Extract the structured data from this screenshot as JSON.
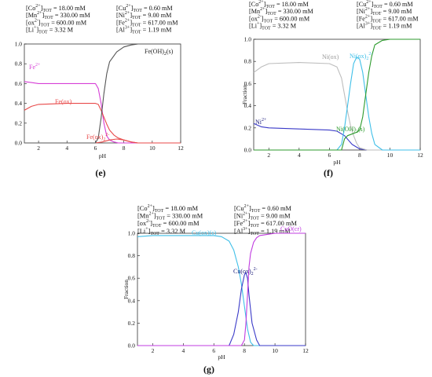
{
  "chart_data": [
    {
      "type": "line",
      "panel_label": "(e)",
      "conditions": {
        "left": [
          {
            "species": "Co",
            "charge": "2+",
            "sub": "TOT",
            "value": "18.00 mM"
          },
          {
            "species": "Mn",
            "charge": "2+",
            "sub": "TOT",
            "value": "330.00 mM"
          },
          {
            "species": "ox",
            "charge": "2-",
            "sub": "TOT",
            "value": "600.00 mM"
          },
          {
            "species": "Li",
            "charge": "+",
            "sub": "TOT",
            "value": "3.32 M"
          }
        ],
        "right": [
          {
            "species": "Cu",
            "charge": "2+",
            "sub": "TOT",
            "value": "0.60 mM"
          },
          {
            "species": "Ni",
            "charge": "2+",
            "sub": "TOT",
            "value": "9.00 mM"
          },
          {
            "species": "Fe",
            "charge": "2+",
            "sub": "TOT",
            "value": "617.00 mM"
          },
          {
            "species": "Al",
            "charge": "3+",
            "sub": "TOT",
            "value": "1.19 mM"
          }
        ]
      },
      "xlabel": "pH",
      "ylabel": "",
      "xlim": [
        1,
        12
      ],
      "ylim": [
        0,
        1
      ],
      "xticks": [
        2,
        4,
        6,
        8,
        10,
        12
      ],
      "yticks": [
        0.0,
        0.2,
        0.4,
        0.6,
        0.8,
        1.0
      ],
      "series": [
        {
          "name": "Fe2+",
          "color": "#d63ed6",
          "x": [
            1,
            1.5,
            2,
            4,
            6,
            6.2,
            6.4,
            6.6,
            6.8,
            7.0,
            7.3,
            7.6,
            8,
            9,
            12
          ],
          "y": [
            0.62,
            0.61,
            0.6,
            0.6,
            0.6,
            0.55,
            0.4,
            0.2,
            0.07,
            0.03,
            0.01,
            0.0,
            0.0,
            0.0,
            0.0
          ]
        },
        {
          "name": "Fe(ox)",
          "color": "#e84a4a",
          "x": [
            1,
            1.5,
            2,
            4,
            6,
            6.2,
            6.4,
            6.6,
            6.8,
            7.0,
            7.3,
            7.6,
            8,
            8.5,
            9,
            12
          ],
          "y": [
            0.33,
            0.37,
            0.39,
            0.4,
            0.4,
            0.39,
            0.33,
            0.26,
            0.19,
            0.13,
            0.08,
            0.05,
            0.03,
            0.01,
            0.0,
            0.0
          ]
        },
        {
          "name": "Fe(ox)2 2-",
          "color": "#e84a4a",
          "x": [
            1,
            4,
            6,
            6.5,
            7,
            7.5,
            8,
            8.5,
            9,
            12
          ],
          "y": [
            0.0,
            0.0,
            0.0,
            0.01,
            0.03,
            0.04,
            0.03,
            0.01,
            0.0,
            0.0
          ]
        },
        {
          "name": "Fe(OH)2(s)",
          "color": "#555555",
          "x": [
            1,
            6,
            6.2,
            6.4,
            6.6,
            6.8,
            7.0,
            7.5,
            8,
            8.5,
            9,
            10,
            12
          ],
          "y": [
            0.0,
            0.0,
            0.05,
            0.25,
            0.5,
            0.7,
            0.82,
            0.92,
            0.97,
            0.99,
            1.0,
            1.0,
            1.0
          ]
        }
      ],
      "series_labels": [
        {
          "text": "Fe",
          "sup": "2+",
          "color": "#d63ed6"
        },
        {
          "text": "Fe(ox)",
          "color": "#e84a4a"
        },
        {
          "text": "Fe(ox)",
          "sub": "2",
          "sup": "2-",
          "color": "#e84a4a"
        },
        {
          "text": "Fe(OH)",
          "sub": "2",
          "after": "(s)",
          "color": "#222222"
        }
      ]
    },
    {
      "type": "line",
      "panel_label": "(f)",
      "conditions": {
        "left": [
          {
            "species": "Co",
            "charge": "2+",
            "sub": "TOT",
            "value": "18.00 mM"
          },
          {
            "species": "Mn",
            "charge": "2+",
            "sub": "TOT",
            "value": "330.00 mM"
          },
          {
            "species": "ox",
            "charge": "2-",
            "sub": "TOT",
            "value": "600.00 mM"
          },
          {
            "species": "Li",
            "charge": "+",
            "sub": "TOT",
            "value": "3.32 M"
          }
        ],
        "right": [
          {
            "species": "Cu",
            "charge": "2+",
            "sub": "TOT",
            "value": "0.60 mM"
          },
          {
            "species": "Ni",
            "charge": "2+",
            "sub": "TOT",
            "value": "9.00 mM"
          },
          {
            "species": "Fe",
            "charge": "2+",
            "sub": "TOT",
            "value": "617.00 mM"
          },
          {
            "species": "Al",
            "charge": "3+",
            "sub": "TOT",
            "value": "1.19 mM"
          }
        ]
      },
      "xlabel": "pH",
      "ylabel": "Fraction",
      "xlim": [
        1,
        12
      ],
      "ylim": [
        0,
        1
      ],
      "xticks": [
        2,
        4,
        6,
        8,
        10,
        12
      ],
      "yticks": [
        0.0,
        0.2,
        0.4,
        0.6,
        0.8,
        1.0
      ],
      "series": [
        {
          "name": "Ni2+",
          "color": "#3a3ac8",
          "x": [
            1,
            1.5,
            2,
            4,
            6,
            6.5,
            7,
            7.5,
            8,
            8.5,
            12
          ],
          "y": [
            0.24,
            0.21,
            0.2,
            0.19,
            0.18,
            0.17,
            0.13,
            0.05,
            0.01,
            0.0,
            0.0
          ]
        },
        {
          "name": "Ni(ox)",
          "color": "#bdbdbd",
          "x": [
            1,
            1.5,
            2,
            4,
            6,
            6.5,
            6.8,
            7.0,
            7.2,
            7.4,
            7.6,
            7.8,
            8.0,
            8.5,
            12
          ],
          "y": [
            0.7,
            0.75,
            0.78,
            0.79,
            0.78,
            0.75,
            0.65,
            0.5,
            0.35,
            0.22,
            0.13,
            0.06,
            0.02,
            0.0,
            0.0
          ]
        },
        {
          "name": "Ni(ox)2 2-",
          "color": "#3fbfe8",
          "x": [
            1,
            6.5,
            6.8,
            7.0,
            7.2,
            7.4,
            7.6,
            7.8,
            8.0,
            8.2,
            8.4,
            8.6,
            8.8,
            9.0,
            9.5,
            12
          ],
          "y": [
            0.0,
            0.0,
            0.05,
            0.2,
            0.4,
            0.6,
            0.78,
            0.84,
            0.82,
            0.7,
            0.5,
            0.3,
            0.15,
            0.05,
            0.0,
            0.0
          ]
        },
        {
          "name": "Ni(OH)2(s)",
          "color": "#2c9a2c",
          "x": [
            1,
            6.8,
            7.0,
            7.2,
            7.4,
            7.6,
            7.8,
            8.0,
            8.2,
            8.4,
            8.6,
            8.8,
            9.0,
            9.5,
            10,
            12
          ],
          "y": [
            0.0,
            0.0,
            0.1,
            0.13,
            0.14,
            0.15,
            0.16,
            0.18,
            0.3,
            0.5,
            0.7,
            0.85,
            0.95,
            0.99,
            1.0,
            1.0
          ]
        }
      ],
      "series_labels": [
        {
          "text": "Ni",
          "sup": "2+",
          "color": "#1a1a7a"
        },
        {
          "text": "Ni(ox)",
          "color": "#9a9a9a"
        },
        {
          "text": "Ni(ox)",
          "sub": "2",
          "sup": "2-",
          "color": "#3fbfe8"
        },
        {
          "text": "Ni(OH)",
          "sub": "2",
          "after": "(s)",
          "color": "#2c9a2c"
        }
      ]
    },
    {
      "type": "line",
      "panel_label": "(g)",
      "conditions": {
        "left": [
          {
            "species": "Co",
            "charge": "2+",
            "sub": "TOT",
            "value": "18.00 mM"
          },
          {
            "species": "Mn",
            "charge": "2+",
            "sub": "TOT",
            "value": "330.00 mM"
          },
          {
            "species": "ox",
            "charge": "2-",
            "sub": "TOT",
            "value": "600.00 mM"
          },
          {
            "species": "Li",
            "charge": "+",
            "sub": "TOT",
            "value": "3.32 M"
          }
        ],
        "right": [
          {
            "species": "Cu",
            "charge": "2+",
            "sub": "TOT",
            "value": "0.60 mM"
          },
          {
            "species": "Ni",
            "charge": "2+",
            "sub": "TOT",
            "value": "9.00 mM"
          },
          {
            "species": "Fe",
            "charge": "2+",
            "sub": "TOT",
            "value": "617.00 mM"
          },
          {
            "species": "Al",
            "charge": "3+",
            "sub": "TOT",
            "value": "1.19 mM"
          }
        ]
      },
      "xlabel": "pH",
      "ylabel": "Fraction",
      "xlim": [
        1,
        12
      ],
      "ylim": [
        0,
        1
      ],
      "xticks": [
        2,
        4,
        6,
        8,
        10,
        12
      ],
      "yticks": [
        0.0,
        0.2,
        0.4,
        0.6,
        0.8,
        1.0
      ],
      "series": [
        {
          "name": "Cu(ox)(s)",
          "color": "#3fbfe8",
          "x": [
            1,
            2,
            4,
            6,
            6.5,
            7,
            7.3,
            7.6,
            7.8,
            8.0,
            8.2,
            8.4,
            8.6,
            12
          ],
          "y": [
            0.97,
            0.98,
            0.98,
            0.98,
            0.97,
            0.93,
            0.85,
            0.7,
            0.55,
            0.35,
            0.15,
            0.03,
            0.0,
            0.0
          ]
        },
        {
          "name": "Cu(ox)2 2-",
          "color": "#3a3ac8",
          "x": [
            1,
            7.0,
            7.3,
            7.6,
            7.8,
            8.0,
            8.1,
            8.2,
            8.3,
            8.5,
            8.8,
            9.0,
            12
          ],
          "y": [
            0.0,
            0.0,
            0.1,
            0.3,
            0.5,
            0.63,
            0.65,
            0.6,
            0.45,
            0.2,
            0.05,
            0.0,
            0.0
          ]
        },
        {
          "name": "CuO(cr)",
          "color": "#c03ce0",
          "x": [
            1,
            7.8,
            8.0,
            8.1,
            8.2,
            8.3,
            8.4,
            8.6,
            8.8,
            9.0,
            9.5,
            10,
            12
          ],
          "y": [
            0.0,
            0.0,
            0.05,
            0.2,
            0.45,
            0.7,
            0.82,
            0.92,
            0.96,
            0.98,
            0.99,
            1.0,
            1.0
          ]
        }
      ],
      "series_labels": [
        {
          "text": "Cu(ox)(s)",
          "color": "#3fbfe8"
        },
        {
          "text": "Cu(ox)",
          "sub": "2",
          "sup": "2-",
          "color": "#1a1a7a"
        },
        {
          "text": "CuO(cr)",
          "color": "#c03ce0"
        }
      ]
    }
  ]
}
